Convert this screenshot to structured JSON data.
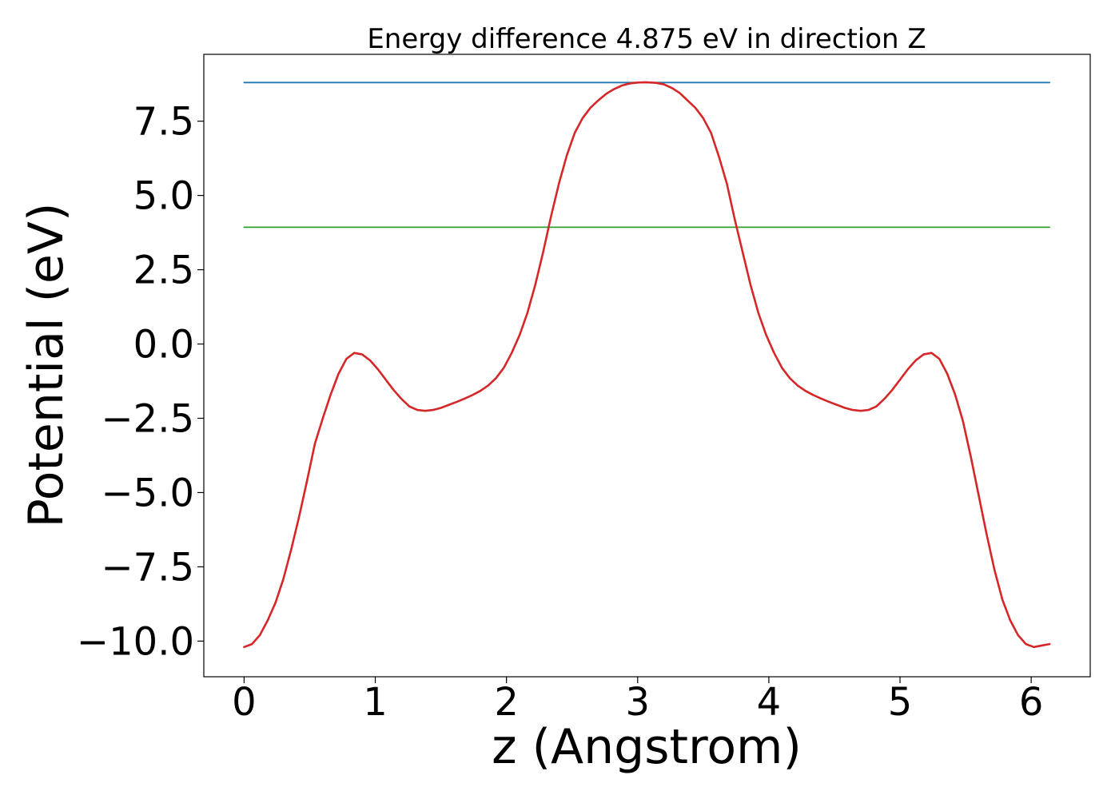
{
  "chart_data": {
    "type": "line",
    "title": "Energy difference 4.875 eV in direction Z",
    "xlabel": "z (Angstrom)",
    "ylabel": "Potential (eV)",
    "xlim": [
      -0.307,
      6.45
    ],
    "ylim": [
      -11.2,
      9.75
    ],
    "xticks": [
      0,
      1,
      2,
      3,
      4,
      5,
      6
    ],
    "xtick_labels": [
      "0",
      "1",
      "2",
      "3",
      "4",
      "5",
      "6"
    ],
    "yticks": [
      -10.0,
      -7.5,
      -5.0,
      -2.5,
      0.0,
      2.5,
      5.0,
      7.5
    ],
    "ytick_labels": [
      "−10.0",
      "−7.5",
      "−5.0",
      "−2.5",
      "0.0",
      "2.5",
      "5.0",
      "7.5"
    ],
    "grid": false,
    "legend": "none",
    "series": [
      {
        "color": "#1f77b4",
        "x": [
          0.0,
          6.14
        ],
        "y": [
          8.8,
          8.8
        ]
      },
      {
        "color": "#2ca02c",
        "x": [
          0.0,
          6.14
        ],
        "y": [
          3.93,
          3.93
        ]
      },
      {
        "color": "#d62728",
        "x": [
          0.0,
          0.06,
          0.12,
          0.18,
          0.24,
          0.3,
          0.36,
          0.42,
          0.48,
          0.54,
          0.6,
          0.66,
          0.72,
          0.78,
          0.84,
          0.9,
          0.96,
          1.02,
          1.08,
          1.14,
          1.2,
          1.26,
          1.32,
          1.38,
          1.44,
          1.5,
          1.56,
          1.62,
          1.68,
          1.74,
          1.8,
          1.86,
          1.92,
          1.98,
          2.04,
          2.1,
          2.16,
          2.22,
          2.28,
          2.34,
          2.4,
          2.46,
          2.52,
          2.58,
          2.64,
          2.7,
          2.76,
          2.82,
          2.88,
          2.94,
          3.0,
          3.06,
          3.1,
          3.14,
          3.2,
          3.26,
          3.32,
          3.38,
          3.44,
          3.5,
          3.56,
          3.62,
          3.68,
          3.74,
          3.8,
          3.86,
          3.92,
          3.98,
          4.04,
          4.1,
          4.16,
          4.22,
          4.28,
          4.34,
          4.4,
          4.46,
          4.52,
          4.58,
          4.64,
          4.7,
          4.76,
          4.82,
          4.88,
          4.94,
          5.0,
          5.06,
          5.12,
          5.18,
          5.24,
          5.3,
          5.36,
          5.42,
          5.48,
          5.54,
          5.6,
          5.66,
          5.72,
          5.78,
          5.84,
          5.9,
          5.96,
          6.02,
          6.08,
          6.14
        ],
        "y": [
          -10.2,
          -10.1,
          -9.8,
          -9.3,
          -8.7,
          -7.9,
          -6.9,
          -5.8,
          -4.6,
          -3.35,
          -2.5,
          -1.7,
          -1.0,
          -0.5,
          -0.3,
          -0.35,
          -0.55,
          -0.85,
          -1.2,
          -1.55,
          -1.85,
          -2.1,
          -2.22,
          -2.25,
          -2.22,
          -2.15,
          -2.05,
          -1.95,
          -1.84,
          -1.72,
          -1.58,
          -1.4,
          -1.15,
          -0.8,
          -0.3,
          0.3,
          1.05,
          2.0,
          3.1,
          4.3,
          5.4,
          6.35,
          7.1,
          7.6,
          7.95,
          8.2,
          8.42,
          8.58,
          8.7,
          8.77,
          8.8,
          8.81,
          8.8,
          8.79,
          8.74,
          8.62,
          8.45,
          8.2,
          7.95,
          7.6,
          7.1,
          6.3,
          5.4,
          4.2,
          3.1,
          2.0,
          1.05,
          0.3,
          -0.3,
          -0.8,
          -1.15,
          -1.4,
          -1.58,
          -1.72,
          -1.84,
          -1.95,
          -2.05,
          -2.15,
          -2.22,
          -2.25,
          -2.22,
          -2.1,
          -1.85,
          -1.55,
          -1.2,
          -0.85,
          -0.55,
          -0.35,
          -0.3,
          -0.5,
          -1.0,
          -1.7,
          -2.6,
          -3.8,
          -5.1,
          -6.4,
          -7.6,
          -8.6,
          -9.3,
          -9.8,
          -10.1,
          -10.2,
          -10.15,
          -10.1
        ]
      }
    ]
  }
}
